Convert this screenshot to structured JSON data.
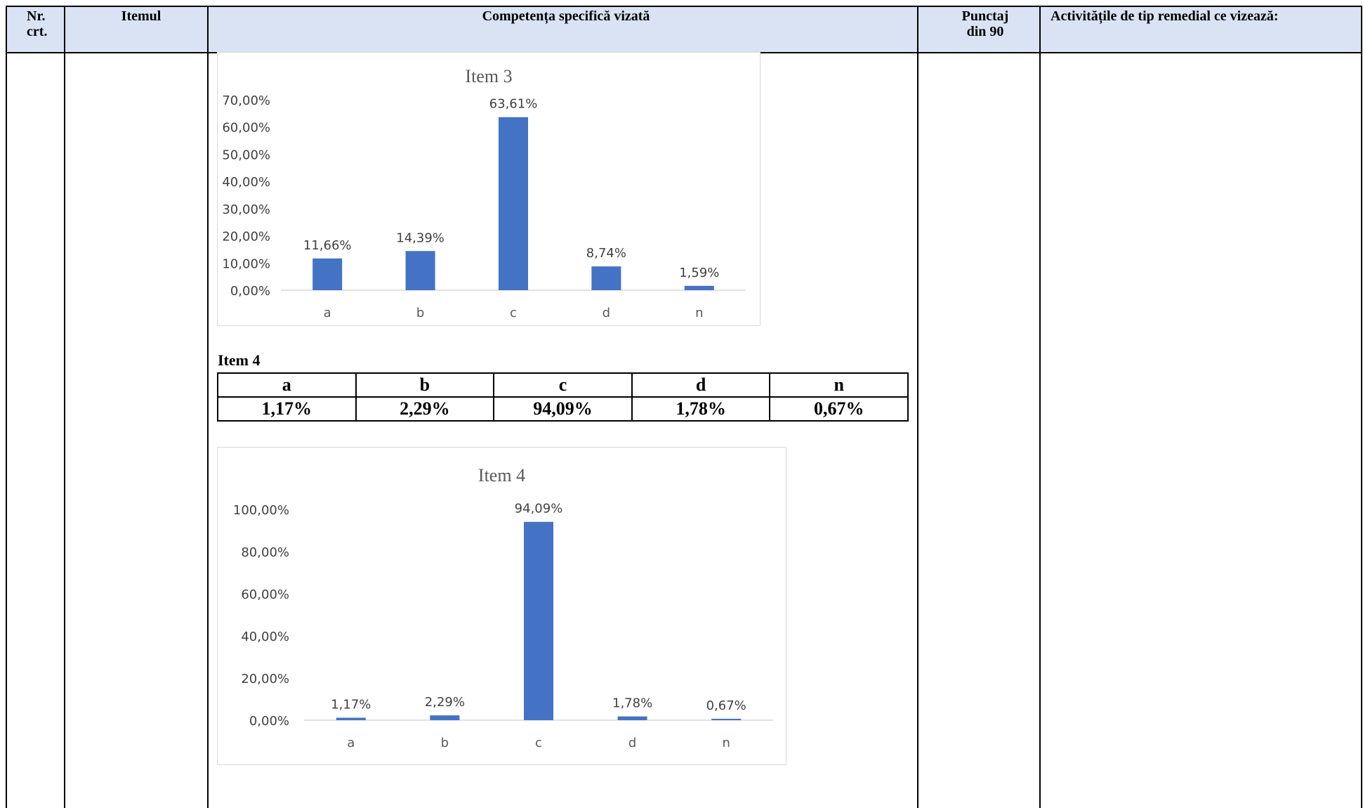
{
  "table": {
    "headers": {
      "nr": "Nr. crt.",
      "item": "Itemul",
      "competenta": "Competența specifică vizată",
      "punctaj": "Punctaj din 90",
      "activitati": "Activitățile de tip remedial ce vizează:"
    }
  },
  "item4_table": {
    "title": "Item 4",
    "options": [
      "a",
      "b",
      "c",
      "d",
      "n"
    ],
    "values": [
      "1,17%",
      "2,29%",
      "94,09%",
      "1,78%",
      "0,67%"
    ]
  },
  "colors": {
    "bar": "#4472c4",
    "header_bg": "#dae3f3"
  },
  "chart_data": [
    {
      "type": "bar",
      "title": "Item 3",
      "categories": [
        "a",
        "b",
        "c",
        "d",
        "n"
      ],
      "values": [
        11.66,
        14.39,
        63.61,
        8.74,
        1.59
      ],
      "value_labels": [
        "11,66%",
        "14,39%",
        "63,61%",
        "8,74%",
        "1,59%"
      ],
      "ylim": [
        0,
        70
      ],
      "yticks": [
        0,
        10,
        20,
        30,
        40,
        50,
        60,
        70
      ],
      "ytick_labels": [
        "0,00%",
        "10,00%",
        "20,00%",
        "30,00%",
        "40,00%",
        "50,00%",
        "60,00%",
        "70,00%"
      ],
      "grid": false,
      "legend": "none"
    },
    {
      "type": "bar",
      "title": "Item 4",
      "categories": [
        "a",
        "b",
        "c",
        "d",
        "n"
      ],
      "values": [
        1.17,
        2.29,
        94.09,
        1.78,
        0.67
      ],
      "value_labels": [
        "1,17%",
        "2,29%",
        "94,09%",
        "1,78%",
        "0,67%"
      ],
      "ylim": [
        0,
        100
      ],
      "yticks": [
        0,
        20,
        40,
        60,
        80,
        100
      ],
      "ytick_labels": [
        "0,00%",
        "20,00%",
        "40,00%",
        "60,00%",
        "80,00%",
        "100,00%"
      ],
      "grid": false,
      "legend": "none"
    }
  ]
}
